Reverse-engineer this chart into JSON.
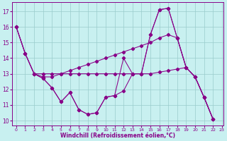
{
  "xlabel": "Windchill (Refroidissement éolien,°C)",
  "bg_color": "#c8f0f0",
  "line_color": "#880088",
  "grid_color": "#99cccc",
  "series1": {
    "x": [
      0,
      1,
      2,
      3,
      4,
      5,
      6,
      7,
      8,
      9,
      10,
      11,
      12,
      13,
      14,
      15,
      16,
      17,
      18,
      19,
      20,
      21,
      22
    ],
    "y": [
      16.0,
      14.3,
      13.0,
      13.0,
      13.0,
      13.0,
      13.0,
      13.0,
      13.0,
      13.0,
      13.0,
      13.0,
      13.0,
      13.0,
      13.0,
      15.5,
      17.1,
      17.2,
      15.3,
      13.4,
      12.8,
      11.5,
      10.1
    ]
  },
  "series2": {
    "x": [
      0,
      1,
      2,
      3,
      4,
      5,
      6,
      7,
      8,
      9,
      10,
      11,
      12,
      13,
      14,
      15,
      16,
      17,
      18,
      19,
      20,
      21,
      22
    ],
    "y": [
      16.0,
      14.3,
      13.0,
      12.7,
      12.1,
      11.2,
      11.8,
      10.7,
      10.4,
      10.5,
      11.5,
      11.6,
      14.0,
      13.0,
      13.0,
      15.5,
      17.1,
      17.2,
      15.3,
      13.4,
      12.8,
      11.5,
      10.1
    ]
  },
  "series3": {
    "x": [
      0,
      1,
      2,
      3,
      4,
      5,
      6,
      7,
      8,
      9,
      10,
      11,
      12,
      13,
      14,
      15,
      16,
      17,
      18,
      19,
      20,
      21,
      22
    ],
    "y": [
      16.0,
      14.3,
      13.0,
      12.8,
      12.8,
      13.0,
      13.2,
      13.4,
      13.6,
      13.8,
      14.0,
      14.2,
      14.4,
      14.6,
      14.8,
      15.0,
      15.3,
      15.5,
      15.3,
      13.4,
      12.8,
      11.5,
      10.1
    ]
  },
  "series4": {
    "x": [
      2,
      3,
      4,
      5,
      6,
      7,
      8,
      9,
      10,
      11,
      12,
      13,
      14,
      15,
      16,
      17,
      18,
      19,
      20,
      21,
      22
    ],
    "y": [
      13.0,
      12.7,
      12.1,
      11.2,
      11.8,
      10.7,
      10.4,
      10.5,
      11.5,
      11.6,
      11.9,
      13.0,
      13.0,
      13.0,
      13.1,
      13.2,
      13.3,
      13.4,
      12.8,
      11.5,
      10.1
    ]
  },
  "ylim": [
    9.7,
    17.6
  ],
  "xlim": [
    -0.5,
    23.2
  ],
  "yticks": [
    10,
    11,
    12,
    13,
    14,
    15,
    16,
    17
  ],
  "xticks": [
    0,
    1,
    2,
    3,
    4,
    5,
    6,
    7,
    8,
    9,
    10,
    11,
    12,
    13,
    14,
    15,
    16,
    17,
    18,
    19,
    20,
    21,
    22,
    23
  ]
}
